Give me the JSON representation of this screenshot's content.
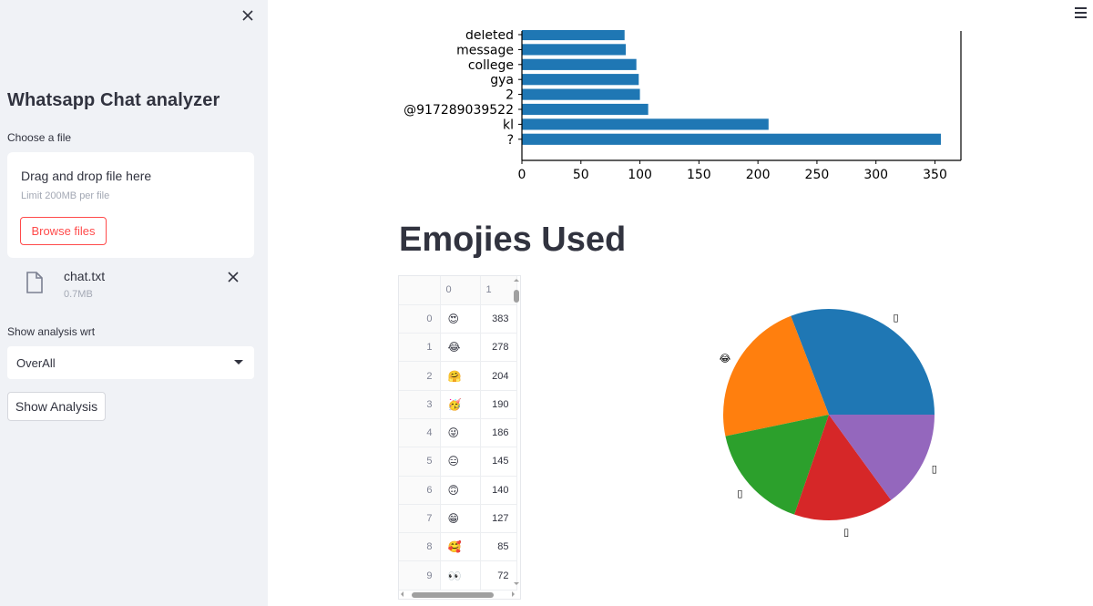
{
  "sidebar": {
    "title": "Whatsapp Chat analyzer",
    "file_label": "Choose a file",
    "dropzone": {
      "title": "Drag and drop file here",
      "limit": "Limit 200MB per file",
      "browse_label": "Browse files"
    },
    "uploaded_file": {
      "name": "chat.txt",
      "size": "0.7MB"
    },
    "analysis_label": "Show analysis wrt",
    "selected_option": "OverAll",
    "show_button": "Show Analysis"
  },
  "main": {
    "emoji_title": "Emojies Used",
    "table": {
      "headers": [
        "0",
        "1"
      ],
      "rows": [
        {
          "idx": "0",
          "emoji": "😍",
          "count": "383"
        },
        {
          "idx": "1",
          "emoji": "😂",
          "count": "278"
        },
        {
          "idx": "2",
          "emoji": "🤗",
          "count": "204"
        },
        {
          "idx": "3",
          "emoji": "🥳",
          "count": "190"
        },
        {
          "idx": "4",
          "emoji": "😜",
          "count": "186"
        },
        {
          "idx": "5",
          "emoji": "😑",
          "count": "145"
        },
        {
          "idx": "6",
          "emoji": "🙃",
          "count": "140"
        },
        {
          "idx": "7",
          "emoji": "😁",
          "count": "127"
        },
        {
          "idx": "8",
          "emoji": "🥰",
          "count": "85"
        },
        {
          "idx": "9",
          "emoji": "👀",
          "count": "72"
        }
      ]
    }
  },
  "chart_data": [
    {
      "type": "bar",
      "orientation": "horizontal",
      "categories": [
        "deleted",
        "message",
        "college",
        "gya",
        "2",
        "@917289039522",
        "kl",
        "?"
      ],
      "values": [
        87,
        88,
        97,
        99,
        100,
        107,
        209,
        355
      ],
      "xticks": [
        0,
        50,
        100,
        150,
        200,
        250,
        300,
        350
      ],
      "xlim": [
        0,
        372
      ],
      "color": "#1f77b4"
    },
    {
      "type": "pie",
      "labels": [
        "▯",
        "😂",
        "▯",
        "▯",
        "▯"
      ],
      "values": [
        383,
        278,
        204,
        190,
        186
      ],
      "colors": [
        "#1f77b4",
        "#ff7f0e",
        "#2ca02c",
        "#d62728",
        "#9467bd"
      ]
    }
  ]
}
